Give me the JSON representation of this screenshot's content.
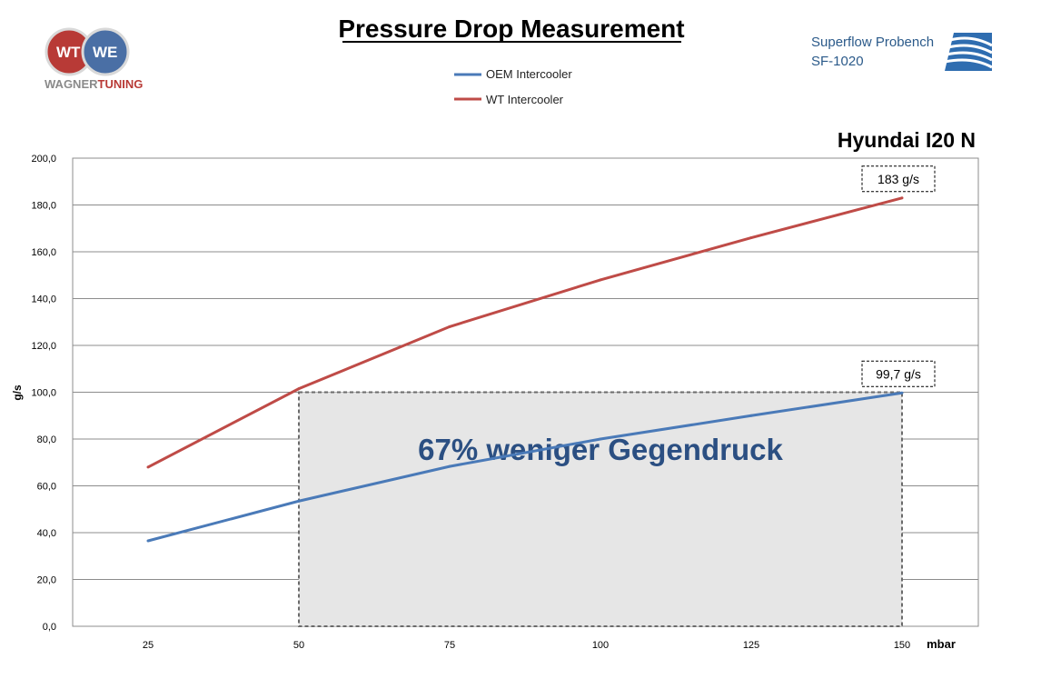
{
  "header": {
    "title": "Pressure Drop Measurement",
    "logo_part1": "WAGNER",
    "logo_part2": "TUNING",
    "logo_mark_left": "WT",
    "logo_mark_right": "WE",
    "vendor_line1": "Superflow Probench",
    "vendor_line2": "SF-1020",
    "car_model": "Hyundai I20 N"
  },
  "colors": {
    "oem": "#4a7ab8",
    "wt": "#bf4b47",
    "grid": "#8c8c8c",
    "highlight_fill": "#e6e6e6",
    "highlight_border": "#6b6b6b",
    "highlight_text": "#2b4f82"
  },
  "chart_data": {
    "type": "line",
    "title": "Pressure Drop Measurement",
    "xlabel": "mbar",
    "ylabel": "g/s",
    "categories": [
      25,
      50,
      75,
      100,
      125,
      150
    ],
    "category_labels": [
      "25",
      "50",
      "75",
      "100",
      "125",
      "150"
    ],
    "ylim": [
      0,
      200
    ],
    "yticks": [
      0,
      20,
      40,
      60,
      80,
      100,
      120,
      140,
      160,
      180,
      200
    ],
    "ytick_labels": [
      "0,0",
      "20,0",
      "40,0",
      "60,0",
      "80,0",
      "100,0",
      "120,0",
      "140,0",
      "160,0",
      "180,0",
      "200,0"
    ],
    "grid": true,
    "legend_position": "top-center",
    "series": [
      {
        "name": "OEM Intercooler",
        "values": [
          36.5,
          53.5,
          68.3,
          80.0,
          90.0,
          99.7
        ]
      },
      {
        "name": "WT Intercooler",
        "values": [
          68.0,
          101.5,
          128.0,
          148.0,
          166.0,
          183.0
        ]
      }
    ],
    "callouts": [
      {
        "series": 1,
        "x": 150,
        "text": "183 g/s"
      },
      {
        "series": 0,
        "x": 150,
        "text": "99,7 g/s"
      }
    ],
    "highlight": {
      "x_range": [
        50,
        150
      ],
      "y_range": [
        0,
        100
      ],
      "text": "67% weniger Gegendruck"
    }
  }
}
